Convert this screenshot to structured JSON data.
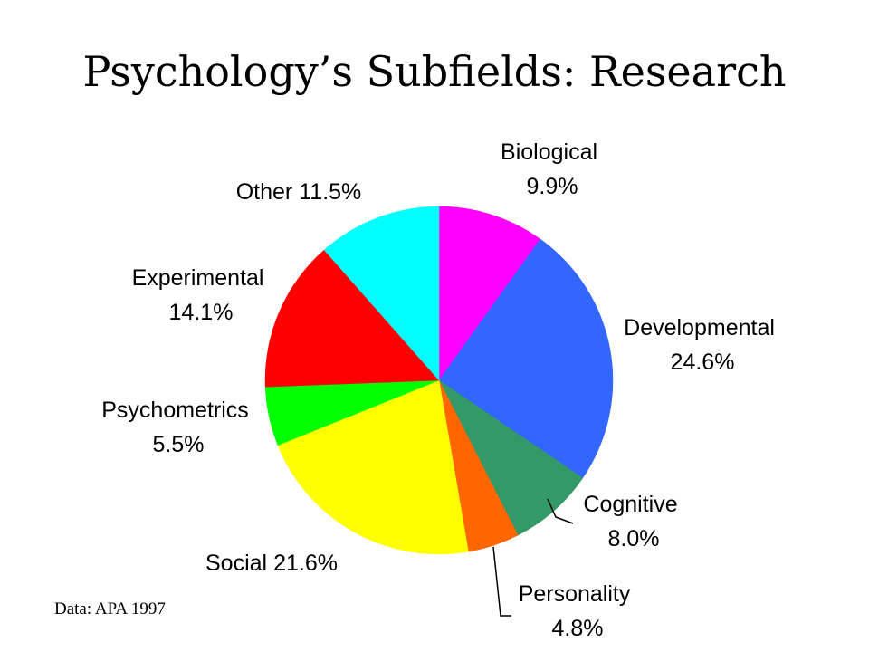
{
  "slide": {
    "title": "Psychology’s Subfields: Research",
    "source_note": "Data: APA 1997"
  },
  "chart_data": {
    "type": "pie",
    "title": "Psychology’s Subfields: Research",
    "start_angle_deg": 0,
    "direction": "clockwise",
    "legend": "none",
    "slices": [
      {
        "category": "Biological",
        "value": 9.9,
        "text": "9.9%",
        "color": "#ff00ff"
      },
      {
        "category": "Developmental",
        "value": 24.6,
        "text": "24.6%",
        "color": "#3366ff"
      },
      {
        "category": "Cognitive",
        "value": 8.0,
        "text": "8.0%",
        "color": "#339966"
      },
      {
        "category": "Personality",
        "value": 4.8,
        "text": "4.8%",
        "color": "#ff6600"
      },
      {
        "category": "Social",
        "value": 21.6,
        "text": "21.6%",
        "color": "#ffff00"
      },
      {
        "category": "Psychometrics",
        "value": 5.5,
        "text": "5.5%",
        "color": "#00ff00"
      },
      {
        "category": "Experimental",
        "value": 14.1,
        "text": "14.1%",
        "color": "#ff0000"
      },
      {
        "category": "Other",
        "value": 11.5,
        "text": "11.5%",
        "color": "#00ffff"
      }
    ]
  }
}
